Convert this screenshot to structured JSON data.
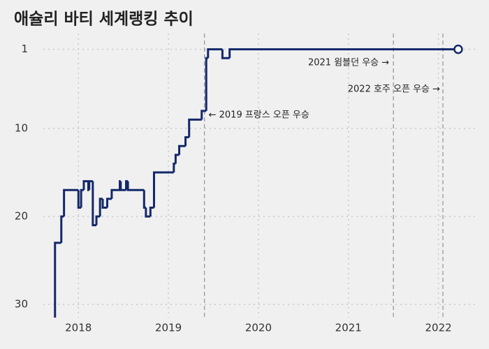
{
  "chart_data": {
    "type": "step-line",
    "title": "애슐리 바티 세계랭킹 추이",
    "x": [
      2017.74,
      2017.81,
      2017.84,
      2018.0,
      2018.03,
      2018.06,
      2018.11,
      2018.12,
      2018.16,
      2018.2,
      2018.24,
      2018.27,
      2018.32,
      2018.37,
      2018.46,
      2018.47,
      2018.53,
      2018.55,
      2018.73,
      2018.75,
      2018.8,
      2018.84,
      2019.06,
      2019.08,
      2019.12,
      2019.19,
      2019.23,
      2019.37,
      2019.42,
      2019.44,
      2019.6,
      2019.68,
      2022.22
    ],
    "series": [
      {
        "name": "세계랭킹",
        "color": "#13286a",
        "values": [
          23,
          20,
          17,
          19,
          17,
          16,
          17,
          16,
          21,
          20,
          18,
          19,
          18,
          17,
          16,
          17,
          16,
          17,
          19,
          20,
          19,
          15,
          14,
          13,
          12,
          11,
          9,
          8,
          2,
          1,
          2,
          1,
          1
        ]
      }
    ],
    "xlim": [
      2017.61,
      2022.43
    ],
    "xticks": [
      2018,
      2019,
      2020,
      2021,
      2022
    ],
    "ylim": [
      0,
      31.5
    ],
    "yticks": [
      1,
      10,
      20,
      30
    ],
    "y_inverted": true,
    "grid": true,
    "annotations": [
      {
        "text": "← 2019 프랑스 오픈 우승",
        "x": 2019.4
      },
      {
        "text": "2021 윔블던 우승 →",
        "x": 2021.5
      },
      {
        "text": "2022 호주 오픈 우승 →",
        "x": 2022.05
      }
    ]
  }
}
